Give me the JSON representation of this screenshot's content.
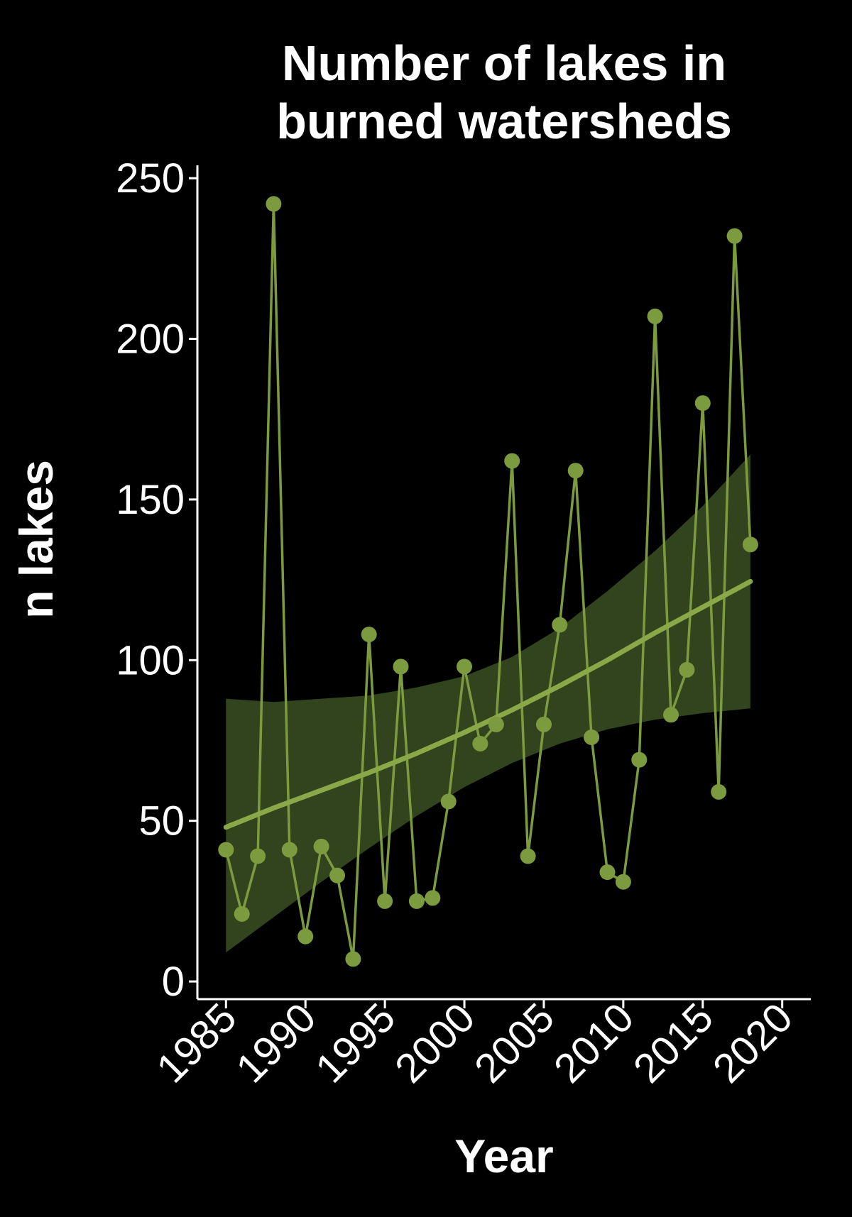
{
  "chart_data": {
    "type": "line",
    "title": [
      "Number of lakes in",
      "burned watersheds"
    ],
    "xlabel": "Year",
    "ylabel": "n lakes",
    "xlim": [
      1983.2,
      2021.8
    ],
    "ylim": [
      -5.5,
      254
    ],
    "x_ticks": [
      1985,
      1990,
      1995,
      2000,
      2005,
      2010,
      2015,
      2020
    ],
    "y_ticks": [
      0,
      50,
      100,
      150,
      200,
      250
    ],
    "grid": false,
    "legend": "none",
    "colors": {
      "background": "#000000",
      "series": "#7c9b3e",
      "trend": "#8aa848",
      "band": "#32441d",
      "axis": "#ffffff"
    },
    "series": [
      {
        "x": [
          1985,
          1986,
          1987,
          1988,
          1989,
          1990,
          1991,
          1992,
          1993,
          1994,
          1995,
          1996,
          1997,
          1998,
          1999,
          2000,
          2001,
          2002,
          2003,
          2004,
          2005,
          2006,
          2007,
          2008,
          2009,
          2010,
          2011,
          2012,
          2013,
          2014,
          2015,
          2016,
          2017,
          2018
        ],
        "y": [
          41,
          21,
          39,
          242,
          41,
          14,
          42,
          33,
          7,
          108,
          25,
          98,
          25,
          26,
          56,
          98,
          74,
          80,
          162,
          39,
          80,
          111,
          159,
          76,
          34,
          31,
          69,
          207,
          83,
          97,
          180,
          59,
          232,
          136
        ]
      }
    ],
    "trend": {
      "x": [
        1985,
        1988,
        1991,
        1994,
        1997,
        2000,
        2003,
        2006,
        2009,
        2012,
        2015,
        2018
      ],
      "y": [
        48,
        54,
        59.5,
        65,
        71,
        77.5,
        84.5,
        92,
        100,
        108.5,
        116.5,
        124.5
      ],
      "lower": [
        9,
        20,
        31,
        41.5,
        51.5,
        60.5,
        68,
        74,
        78.5,
        81.5,
        83.5,
        85
      ],
      "upper": [
        88,
        87,
        88,
        89,
        91.5,
        95,
        101,
        110,
        121.5,
        134,
        148,
        164
      ]
    }
  }
}
